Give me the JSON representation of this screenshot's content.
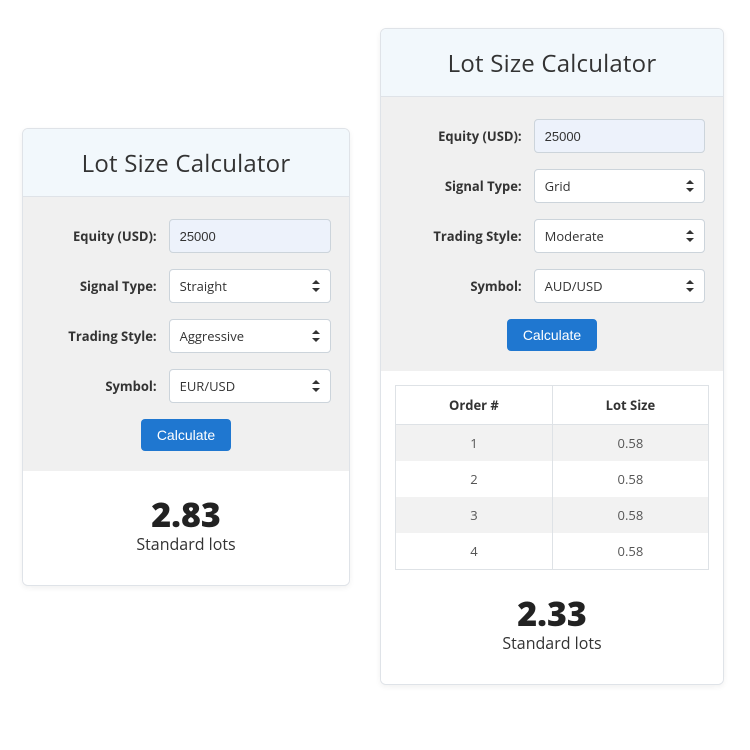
{
  "colors": {
    "header_bg": "#f2f8fc",
    "form_bg": "#f0f0f0",
    "input_bg": "#edf2fb",
    "select_bg": "#ffffff",
    "button_bg": "#1f77d0",
    "button_text": "#ffffff",
    "border": "#dfe3e8",
    "table_border": "#dee2e6",
    "table_stripe": "#f2f2f2",
    "text": "#333333"
  },
  "left": {
    "title": "Lot Size Calculator",
    "labels": {
      "equity": "Equity (USD):",
      "signal_type": "Signal Type:",
      "trading_style": "Trading Style:",
      "symbol": "Symbol:"
    },
    "values": {
      "equity": "25000",
      "signal_type": "Straight",
      "trading_style": "Aggressive",
      "symbol": "EUR/USD"
    },
    "button": "Calculate",
    "result": {
      "value": "2.83",
      "label": "Standard lots"
    }
  },
  "right": {
    "title": "Lot Size Calculator",
    "labels": {
      "equity": "Equity (USD):",
      "signal_type": "Signal Type:",
      "trading_style": "Trading Style:",
      "symbol": "Symbol:"
    },
    "values": {
      "equity": "25000",
      "signal_type": "Grid",
      "trading_style": "Moderate",
      "symbol": "AUD/USD"
    },
    "button": "Calculate",
    "table": {
      "columns": [
        "Order #",
        "Lot Size"
      ],
      "rows": [
        [
          "1",
          "0.58"
        ],
        [
          "2",
          "0.58"
        ],
        [
          "3",
          "0.58"
        ],
        [
          "4",
          "0.58"
        ]
      ]
    },
    "result": {
      "value": "2.33",
      "label": "Standard lots"
    }
  }
}
